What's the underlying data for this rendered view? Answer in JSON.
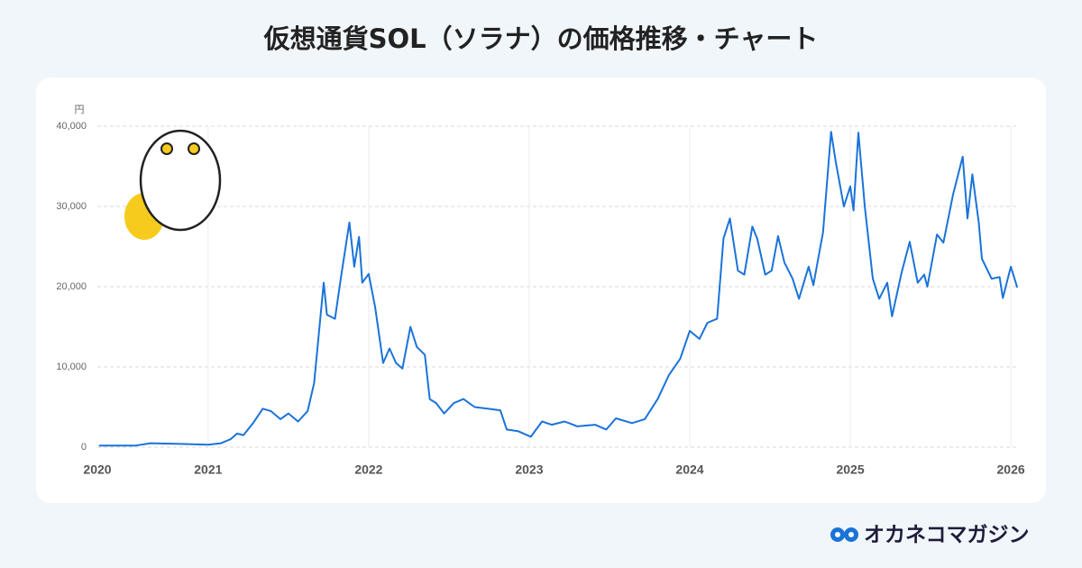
{
  "chart_data": {
    "type": "line",
    "title": "仮想通貨SOL（ソラナ）の価格推移・チャート",
    "y_unit": "円",
    "brand": "オカネコマガジン",
    "color": "#1a73d9",
    "grid": true,
    "xlim": [
      2020.31,
      2026.05
    ],
    "xticks": [
      {
        "value": 2020.31,
        "label": "2020"
      },
      2021,
      2022,
      2023,
      2024,
      2025,
      2026
    ],
    "ylim": [
      0,
      40000
    ],
    "yticks": [
      0,
      {
        "value": 10000,
        "label": "10,000"
      },
      {
        "value": 20000,
        "label": "20,000"
      },
      {
        "value": 30000,
        "label": "30,000"
      },
      {
        "value": 40000,
        "label": "40,000"
      }
    ],
    "x": [
      2020.32,
      2020.55,
      2020.64,
      2020.83,
      2021.0,
      2021.08,
      2021.14,
      2021.18,
      2021.22,
      2021.28,
      2021.34,
      2021.39,
      2021.45,
      2021.5,
      2021.56,
      2021.62,
      2021.66,
      2021.72,
      2021.74,
      2021.79,
      2021.83,
      2021.88,
      2021.91,
      2021.94,
      2021.96,
      2022.0,
      2022.04,
      2022.09,
      2022.13,
      2022.17,
      2022.21,
      2022.26,
      2022.3,
      2022.35,
      2022.38,
      2022.42,
      2022.47,
      2022.53,
      2022.59,
      2022.66,
      2022.74,
      2022.82,
      2022.86,
      2022.93,
      2023.01,
      2023.08,
      2023.14,
      2023.22,
      2023.3,
      2023.41,
      2023.48,
      2023.54,
      2023.64,
      2023.72,
      2023.8,
      2023.87,
      2023.94,
      2024.0,
      2024.06,
      2024.11,
      2024.17,
      2024.21,
      2024.25,
      2024.3,
      2024.34,
      2024.39,
      2024.42,
      2024.47,
      2024.51,
      2024.55,
      2024.59,
      2024.64,
      2024.68,
      2024.74,
      2024.77,
      2024.83,
      2024.88,
      2024.91,
      2024.96,
      2025.0,
      2025.02,
      2025.05,
      2025.09,
      2025.14,
      2025.18,
      2025.23,
      2025.26,
      2025.32,
      2025.37,
      2025.42,
      2025.46,
      2025.48,
      2025.54,
      2025.58,
      2025.64,
      2025.7,
      2025.73,
      2025.76,
      2025.8,
      2025.82,
      2025.88,
      2025.93,
      2025.95,
      2026.0,
      2026.04
    ],
    "values": [
      200,
      200,
      500,
      400,
      300,
      500,
      1000,
      1700,
      1500,
      3000,
      4800,
      4500,
      3500,
      4200,
      3200,
      4500,
      8000,
      20500,
      16500,
      16000,
      21500,
      28000,
      22500,
      26200,
      20500,
      21600,
      17500,
      10500,
      12300,
      10500,
      9800,
      15000,
      12500,
      11500,
      6000,
      5500,
      4200,
      5500,
      6000,
      5000,
      4800,
      4600,
      2200,
      2000,
      1300,
      3200,
      2800,
      3200,
      2600,
      2800,
      2200,
      3600,
      3000,
      3500,
      6000,
      9000,
      11000,
      14500,
      13500,
      15500,
      16000,
      26000,
      28500,
      22000,
      21500,
      27500,
      26000,
      21500,
      22000,
      26300,
      23000,
      21000,
      18500,
      22500,
      20200,
      26800,
      39300,
      35500,
      30000,
      32500,
      29500,
      39200,
      30000,
      21000,
      18500,
      20500,
      16300,
      21800,
      25600,
      20500,
      21500,
      20000,
      26500,
      25500,
      31500,
      36200,
      28500,
      34000,
      28000,
      23500,
      21000,
      21200,
      18600,
      22500,
      19900
    ]
  }
}
